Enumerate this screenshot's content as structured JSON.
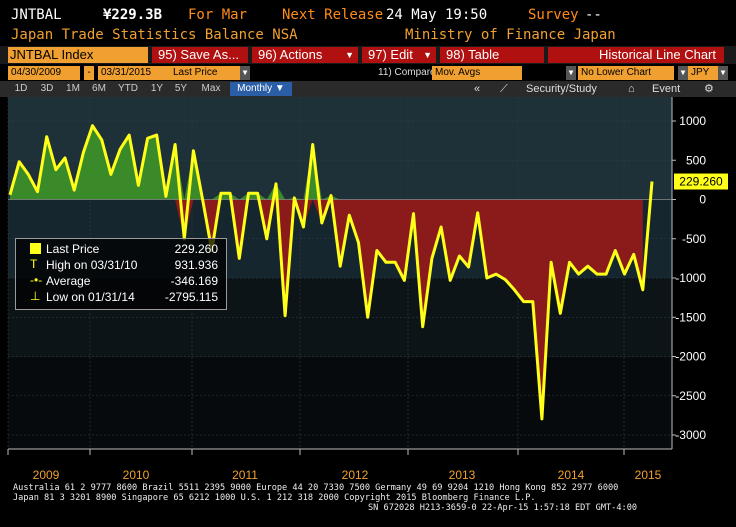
{
  "header": {
    "ticker": "JNTBAL",
    "price": "¥229.3B",
    "period_label": "For Mar",
    "next_release_label": "Next Release",
    "next_release_value": "24 May 19:50",
    "survey_label": "Survey",
    "survey_value": "--",
    "description": "Japan Trade Statistics Balance NSA",
    "source": "Ministry of Finance Japan"
  },
  "toolbar": {
    "index_label": "JNTBAL Index",
    "save_label": "95) Save As...",
    "actions_label": "96) Actions",
    "edit_label": "97) Edit",
    "table_label": "98) Table",
    "chart_title": "Historical Line Chart"
  },
  "settings": {
    "start_date": "04/30/2009",
    "end_date": "03/31/2015",
    "field": "Last Price",
    "compare_label": "11) Compare",
    "compare_value": "Mov. Avgs",
    "lower_chart": "No Lower Chart",
    "currency": "JPY"
  },
  "periods": [
    "1D",
    "3D",
    "1M",
    "6M",
    "YTD",
    "1Y",
    "5Y",
    "Max"
  ],
  "frequency": "Monthly",
  "tools": {
    "security_label": "Security/Study",
    "event_label": "Event"
  },
  "legend": {
    "last_price_label": "Last Price",
    "last_price_value": "229.260",
    "high_label": "High on 03/31/10",
    "high_value": "931.936",
    "average_label": "Average",
    "average_value": "-346.169",
    "low_label": "Low on 01/31/14",
    "low_value": "-2795.115"
  },
  "colors": {
    "line": "#ffff1a",
    "positive_fill": "#3a8a2a",
    "negative_fill": "#8b1a1a",
    "accent_amber": "#f0a030",
    "button_red": "#b01010"
  },
  "chart_data": {
    "type": "line",
    "series": [
      {
        "name": "Last Price",
        "values": [
          60,
          480,
          320,
          100,
          800,
          380,
          530,
          120,
          600,
          940,
          760,
          320,
          640,
          820,
          180,
          780,
          820,
          40,
          700,
          -500,
          620,
          0,
          -650,
          80,
          80,
          -750,
          80,
          80,
          -500,
          200,
          -1480,
          20,
          -350,
          700,
          -300,
          50,
          -850,
          -200,
          -550,
          -1500,
          -650,
          -800,
          -800,
          -1030,
          -180,
          -1620,
          -750,
          -350,
          -1030,
          -720,
          -860,
          -170,
          -1000,
          -950,
          -1020,
          -1150,
          -1300,
          -1300,
          -2795,
          -800,
          -1450,
          -800,
          -950,
          -850,
          -950,
          -950,
          -650,
          -950,
          -700,
          -1150,
          229
        ]
      }
    ],
    "x_ticks": [
      "2009",
      "2010",
      "2011",
      "2012",
      "2013",
      "2014",
      "2015"
    ],
    "y_ticks": [
      1000,
      500,
      0,
      -500,
      -1000,
      -1500,
      -2000,
      -2500,
      -3000
    ],
    "ylim": [
      -3100,
      1200
    ],
    "last_value_label": "229.260",
    "legend_position": "left"
  },
  "footer": {
    "line1": "Australia 61 2 9777 8600 Brazil 5511 2395 9000 Europe 44 20 7330 7500 Germany 49 69 9204 1210 Hong Kong 852 2977 6000",
    "line2": "Japan 81 3 3201 8900        Singapore 65 6212 1000        U.S. 1 212 318 2000        Copyright 2015 Bloomberg Finance L.P.",
    "line3": "SN 672028 H213-3659-0 22-Apr-15  1:57:18 EDT  GMT-4:00"
  }
}
